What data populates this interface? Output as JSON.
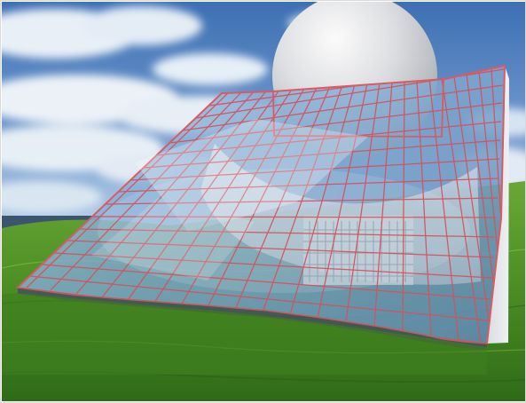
{
  "image": {
    "kind": "architectural-rendering",
    "palette": {
      "sky_top": "#3d6fb3",
      "sky_bottom": "#9fc2e5",
      "cloud": "#f4f7fb",
      "grass_light": "#64a92e",
      "grass_dark": "#285b13",
      "glass": "#7fa8d0",
      "grid": "#d4525c",
      "sphere_light": "#f2f2f2",
      "sphere_shadow": "#9b9ea3",
      "ocean": "#3b5570"
    }
  }
}
